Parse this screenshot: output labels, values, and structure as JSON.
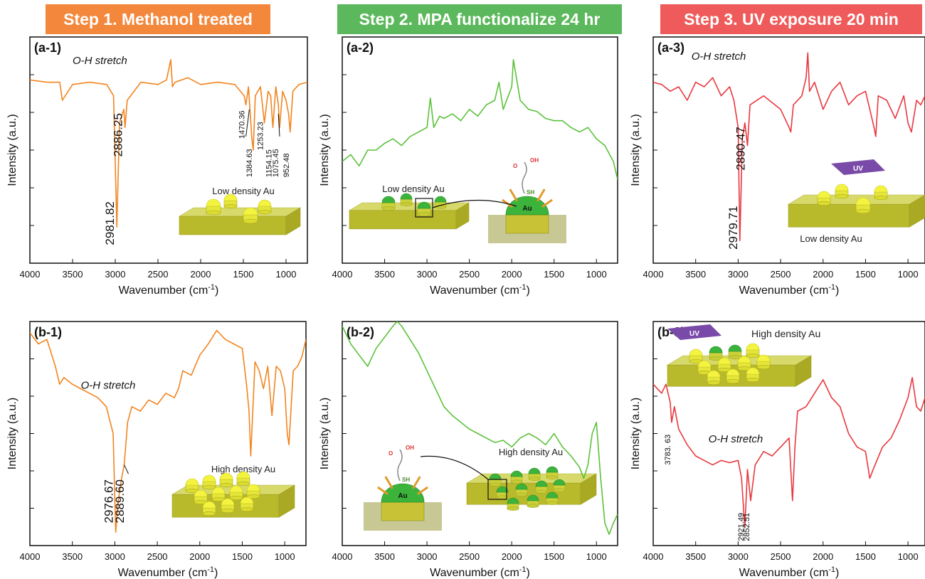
{
  "steps": [
    {
      "label": "Step 1. Methanol treated",
      "color": "#f3873b"
    },
    {
      "label": "Step 2. MPA functionalize 24 hr",
      "color": "#5cb85c"
    },
    {
      "label": "Step 3. UV exposure 20 min",
      "color": "#ef5b5b"
    }
  ],
  "insets": {
    "low_density": "Low density Au",
    "high_density": "High density Au",
    "au": "Au",
    "sh": "SH",
    "oh": "OH",
    "o": "O",
    "uv": "UV"
  },
  "chart_data": [
    {
      "id": "a-1",
      "type": "line",
      "panel_label": "(a-1)",
      "color": "#f2841f",
      "xlabel": "Wavenumber (cm",
      "xlabel_sup": "-1",
      "xlabel_end": ")",
      "ylabel": "Intensity (a.u.)",
      "xlim": [
        4000,
        750
      ],
      "ylim": [
        0,
        1
      ],
      "xticks": [
        4000,
        3500,
        3000,
        2500,
        2000,
        1500,
        1000
      ],
      "annotation": {
        "text": "O-H stretch",
        "x": 3500,
        "y": 0.88
      },
      "series": [
        {
          "x": [
            4000,
            3800,
            3650,
            3620,
            3500,
            3300,
            3100,
            3020,
            2982,
            2950,
            2900,
            2886,
            2860,
            2700,
            2500,
            2400,
            2350,
            2330,
            2300,
            2150,
            2000,
            1800,
            1600,
            1490,
            1470,
            1440,
            1400,
            1384,
            1360,
            1300,
            1253,
            1210,
            1180,
            1154,
            1120,
            1090,
            1075,
            1040,
            1000,
            970,
            952,
            920,
            850,
            750
          ],
          "y": [
            0.81,
            0.8,
            0.8,
            0.72,
            0.79,
            0.8,
            0.79,
            0.74,
            0.16,
            0.62,
            0.68,
            0.6,
            0.72,
            0.8,
            0.79,
            0.81,
            0.9,
            0.78,
            0.8,
            0.82,
            0.79,
            0.8,
            0.79,
            0.74,
            0.7,
            0.78,
            0.55,
            0.5,
            0.74,
            0.78,
            0.62,
            0.76,
            0.74,
            0.6,
            0.78,
            0.7,
            0.6,
            0.76,
            0.72,
            0.66,
            0.58,
            0.76,
            0.79,
            0.8
          ]
        }
      ],
      "peak_labels": [
        {
          "text": "2981.82",
          "x": 2982,
          "y": 0.08,
          "size": "large"
        },
        {
          "text": "2886.25",
          "x": 2886,
          "y": 0.47,
          "size": "large"
        },
        {
          "text": "1470.36",
          "x": 1470,
          "y": 0.55,
          "size": "small"
        },
        {
          "text": "1384.63",
          "x": 1384,
          "y": 0.38,
          "size": "small"
        },
        {
          "text": "1253.23",
          "x": 1253,
          "y": 0.5,
          "size": "small"
        },
        {
          "text": "1154.15",
          "x": 1154,
          "y": 0.38,
          "size": "small"
        },
        {
          "text": "1075.45",
          "x": 1075,
          "y": 0.38,
          "size": "small"
        },
        {
          "text": "952.48",
          "x": 952,
          "y": 0.38,
          "size": "small"
        }
      ],
      "inset": "low"
    },
    {
      "id": "a-2",
      "type": "line",
      "panel_label": "(a-2)",
      "color": "#5cc13b",
      "xlabel": "Wavenumber (cm",
      "xlabel_sup": "-1",
      "xlabel_end": ")",
      "ylabel": "Intensity (a.u.)",
      "xlim": [
        4000,
        750
      ],
      "ylim": [
        0,
        1
      ],
      "xticks": [
        4000,
        3500,
        3000,
        2500,
        2000,
        1500,
        1000
      ],
      "series": [
        {
          "x": [
            4000,
            3900,
            3800,
            3700,
            3600,
            3500,
            3400,
            3300,
            3200,
            3100,
            3000,
            2960,
            2920,
            2850,
            2800,
            2700,
            2600,
            2500,
            2400,
            2300,
            2200,
            2150,
            2100,
            2000,
            1980,
            1900,
            1800,
            1700,
            1600,
            1500,
            1400,
            1300,
            1200,
            1100,
            1000,
            900,
            800,
            750
          ],
          "y": [
            0.45,
            0.48,
            0.43,
            0.5,
            0.5,
            0.53,
            0.55,
            0.52,
            0.56,
            0.58,
            0.6,
            0.73,
            0.6,
            0.65,
            0.64,
            0.66,
            0.63,
            0.68,
            0.65,
            0.7,
            0.72,
            0.8,
            0.68,
            0.78,
            0.9,
            0.72,
            0.68,
            0.67,
            0.64,
            0.63,
            0.63,
            0.6,
            0.58,
            0.6,
            0.55,
            0.52,
            0.45,
            0.37
          ]
        }
      ],
      "inset": "mpa-low"
    },
    {
      "id": "a-3",
      "type": "line",
      "panel_label": "(a-3)",
      "color": "#e8383f",
      "xlabel": "Wavenumber (cm",
      "xlabel_sup": "-1",
      "xlabel_end": ")",
      "ylabel": "Intensity (a.u.)",
      "xlim": [
        4000,
        800
      ],
      "ylim": [
        0,
        1
      ],
      "xticks": [
        4000,
        3500,
        3000,
        2500,
        2000,
        1500,
        1000
      ],
      "annotation": {
        "text": "O-H stretch",
        "x": 3550,
        "y": 0.9
      },
      "series": [
        {
          "x": [
            4000,
            3900,
            3800,
            3700,
            3600,
            3500,
            3400,
            3300,
            3200,
            3100,
            3050,
            3000,
            2980,
            2950,
            2920,
            2890,
            2860,
            2700,
            2500,
            2400,
            2380,
            2350,
            2250,
            2200,
            2180,
            2160,
            2100,
            2000,
            1900,
            1800,
            1700,
            1600,
            1500,
            1400,
            1380,
            1350,
            1250,
            1150,
            1050,
            1000,
            960,
            900,
            850,
            800
          ],
          "y": [
            0.8,
            0.79,
            0.76,
            0.78,
            0.72,
            0.8,
            0.78,
            0.82,
            0.74,
            0.78,
            0.72,
            0.6,
            0.1,
            0.55,
            0.62,
            0.52,
            0.7,
            0.74,
            0.68,
            0.6,
            0.58,
            0.7,
            0.74,
            0.82,
            0.93,
            0.76,
            0.8,
            0.68,
            0.76,
            0.8,
            0.7,
            0.74,
            0.76,
            0.6,
            0.56,
            0.74,
            0.72,
            0.64,
            0.74,
            0.62,
            0.58,
            0.72,
            0.7,
            0.74
          ]
        }
      ],
      "peak_labels": [
        {
          "text": "2979.71",
          "x": 2979,
          "y": 0.06,
          "size": "large"
        },
        {
          "text": "2890.47",
          "x": 2890,
          "y": 0.41,
          "size": "large"
        }
      ],
      "inset": "uv-low"
    },
    {
      "id": "b-1",
      "type": "line",
      "panel_label": "(b-1)",
      "color": "#f2841f",
      "xlabel": "Wavenumber (cm",
      "xlabel_sup": "-1",
      "xlabel_end": ")",
      "ylabel": "Intensity (a.u.)",
      "xlim": [
        4000,
        750
      ],
      "ylim": [
        0,
        1
      ],
      "xticks": [
        4000,
        3500,
        3000,
        2500,
        2000,
        1500,
        1000
      ],
      "annotation": {
        "text": "O-H stretch",
        "x": 3400,
        "y": 0.7
      },
      "series": [
        {
          "x": [
            4000,
            3900,
            3800,
            3700,
            3650,
            3600,
            3500,
            3400,
            3300,
            3200,
            3100,
            3020,
            2990,
            2960,
            2920,
            2890,
            2850,
            2800,
            2700,
            2600,
            2500,
            2400,
            2300,
            2250,
            2200,
            2100,
            2000,
            1900,
            1800,
            1700,
            1600,
            1500,
            1450,
            1420,
            1400,
            1350,
            1300,
            1250,
            1200,
            1150,
            1100,
            1050,
            1000,
            970,
            950,
            900,
            850,
            800,
            750
          ],
          "y": [
            0.95,
            0.9,
            0.92,
            0.8,
            0.72,
            0.75,
            0.72,
            0.7,
            0.68,
            0.66,
            0.62,
            0.5,
            0.06,
            0.2,
            0.3,
            0.36,
            0.55,
            0.62,
            0.6,
            0.65,
            0.63,
            0.68,
            0.66,
            0.7,
            0.78,
            0.76,
            0.85,
            0.9,
            0.96,
            0.92,
            0.9,
            0.88,
            0.72,
            0.6,
            0.4,
            0.82,
            0.78,
            0.7,
            0.8,
            0.58,
            0.8,
            0.78,
            0.7,
            0.5,
            0.45,
            0.78,
            0.8,
            0.84,
            0.92
          ]
        }
      ],
      "peak_labels": [
        {
          "text": "2976.67",
          "x": 2990,
          "y": 0.1,
          "size": "large"
        },
        {
          "text": "2889.60",
          "x": 2860,
          "y": 0.1,
          "size": "large"
        }
      ],
      "inset": "high"
    },
    {
      "id": "b-2",
      "type": "line",
      "panel_label": "(b-2)",
      "color": "#5cc13b",
      "xlabel": "Wavenumber (cm",
      "xlabel_sup": "-1",
      "xlabel_end": ")",
      "ylabel": "Intensity (a.u.)",
      "xlim": [
        4000,
        750
      ],
      "ylim": [
        0,
        1
      ],
      "xticks": [
        4000,
        3500,
        3000,
        2500,
        2000,
        1500,
        1000
      ],
      "series": [
        {
          "x": [
            4000,
            3900,
            3800,
            3700,
            3600,
            3500,
            3400,
            3350,
            3300,
            3200,
            3100,
            3000,
            2900,
            2800,
            2700,
            2600,
            2500,
            2400,
            2300,
            2200,
            2100,
            2000,
            1900,
            1800,
            1700,
            1600,
            1500,
            1400,
            1300,
            1200,
            1150,
            1100,
            1050,
            1000,
            950,
            900,
            850,
            800,
            750
          ],
          "y": [
            0.98,
            0.9,
            0.85,
            0.8,
            0.88,
            0.93,
            0.98,
            1.0,
            0.98,
            0.92,
            0.86,
            0.78,
            0.7,
            0.62,
            0.58,
            0.55,
            0.52,
            0.5,
            0.48,
            0.46,
            0.47,
            0.44,
            0.48,
            0.5,
            0.48,
            0.45,
            0.5,
            0.44,
            0.4,
            0.35,
            0.3,
            0.36,
            0.5,
            0.55,
            0.3,
            0.1,
            0.05,
            0.1,
            0.14
          ]
        }
      ],
      "inset": "mpa-high"
    },
    {
      "id": "b-3",
      "type": "line",
      "panel_label": "(b-3)",
      "color": "#e8383f",
      "xlabel": "Wavenumber (cm",
      "xlabel_sup": "-1",
      "xlabel_end": ")",
      "ylabel": "Intensity (a.u.)",
      "xlim": [
        4000,
        800
      ],
      "ylim": [
        0,
        1
      ],
      "xticks": [
        4000,
        3500,
        3000,
        2500,
        2000,
        1500,
        1000
      ],
      "annotation": {
        "text": "O-H stretch",
        "x": 3350,
        "y": 0.46
      },
      "series": [
        {
          "x": [
            4000,
            3900,
            3850,
            3800,
            3783,
            3750,
            3700,
            3600,
            3500,
            3400,
            3300,
            3200,
            3100,
            3000,
            2960,
            2921,
            2890,
            2852,
            2800,
            2700,
            2600,
            2500,
            2400,
            2360,
            2330,
            2300,
            2200,
            2100,
            2000,
            1900,
            1800,
            1700,
            1600,
            1500,
            1450,
            1400,
            1300,
            1200,
            1100,
            1000,
            950,
            900,
            850,
            800
          ],
          "y": [
            0.72,
            0.68,
            0.72,
            0.64,
            0.55,
            0.62,
            0.52,
            0.45,
            0.4,
            0.38,
            0.36,
            0.38,
            0.37,
            0.38,
            0.3,
            0.08,
            0.34,
            0.2,
            0.36,
            0.42,
            0.4,
            0.44,
            0.48,
            0.2,
            0.45,
            0.6,
            0.62,
            0.68,
            0.74,
            0.66,
            0.62,
            0.5,
            0.44,
            0.42,
            0.3,
            0.35,
            0.44,
            0.48,
            0.56,
            0.66,
            0.75,
            0.62,
            0.6,
            0.66
          ]
        }
      ],
      "peak_labels": [
        {
          "text": "3783. 63",
          "x": 3783,
          "y": 0.36,
          "size": "small"
        },
        {
          "text": "2921.49",
          "x": 2921,
          "y": 0.02,
          "size": "small"
        },
        {
          "text": "2852.51",
          "x": 2852,
          "y": 0.02,
          "size": "small"
        }
      ],
      "inset": "uv-high"
    }
  ]
}
